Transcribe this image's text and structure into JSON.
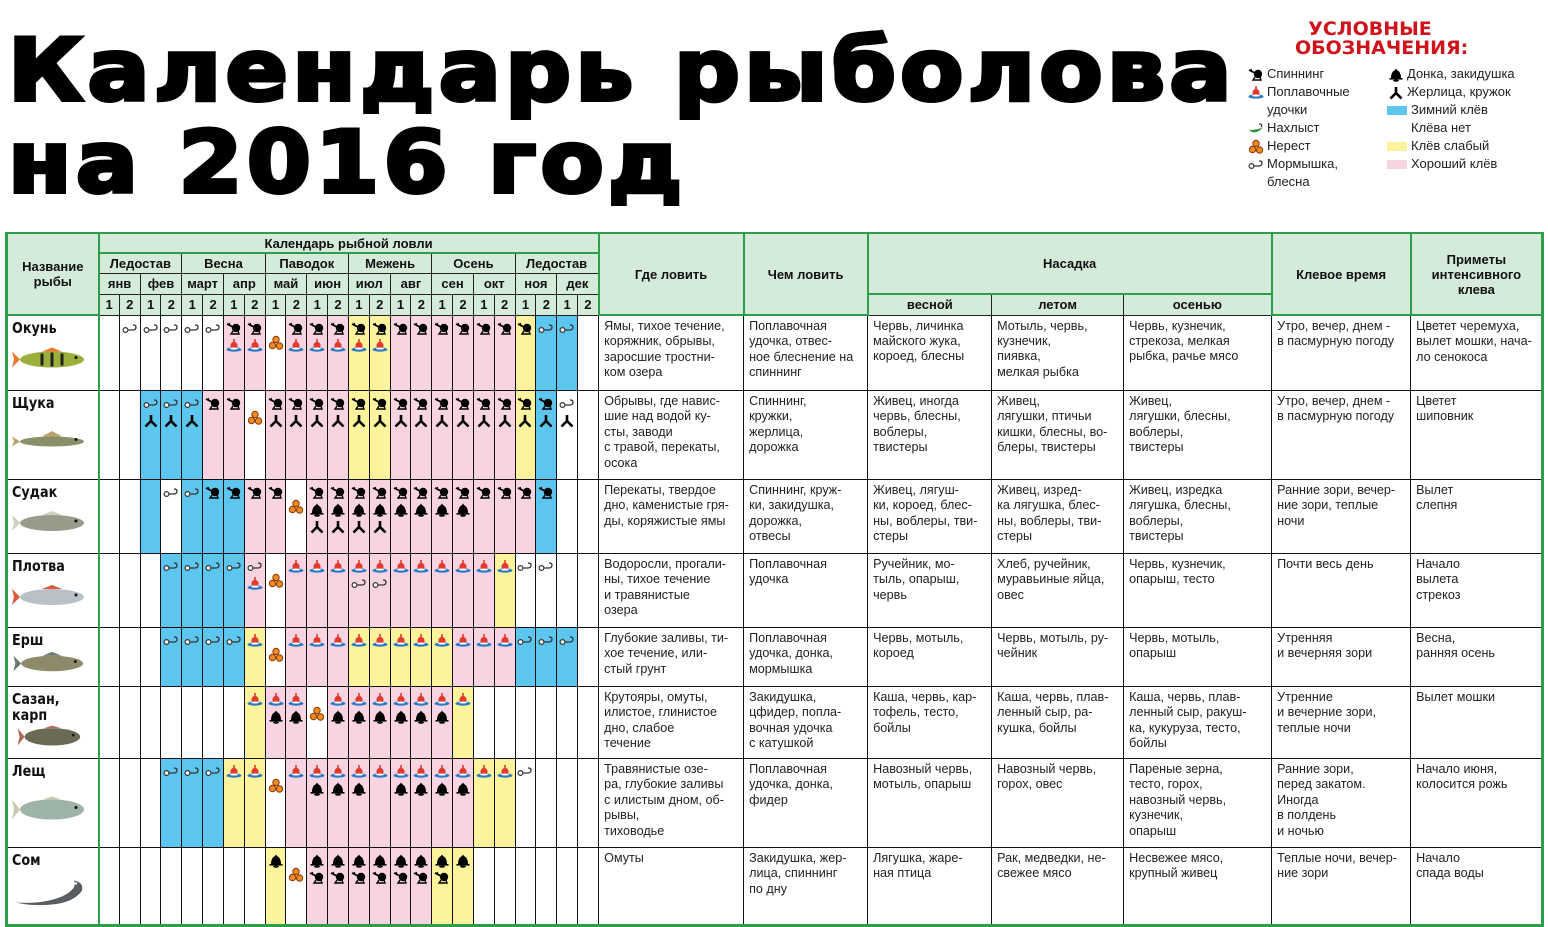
{
  "title": {
    "line1": "Календарь рыболова",
    "line2": "на 2016 год"
  },
  "legend": {
    "title": "УСЛОВНЫЕ\nОБОЗНАЧЕНИЯ:",
    "gear": [
      {
        "code": "S",
        "icon": "spinning-icon",
        "label": "Спиннинг"
      },
      {
        "code": "F",
        "icon": "float-rod-icon",
        "label": "Поплавочные\nудочки"
      },
      {
        "code": "H",
        "icon": "fly-fishing-icon",
        "label": "Нахлыст"
      },
      {
        "code": "N",
        "icon": "spawning-icon",
        "label": "Нерест"
      },
      {
        "code": "M",
        "icon": "jig-spoon-icon",
        "label": "Мормышка,\nблесна"
      },
      {
        "code": "D",
        "icon": "bottom-rod-icon",
        "label": "Донка, закидушка"
      },
      {
        "code": "Z",
        "icon": "zherlitsa-icon",
        "label": "Жерлица, кружок"
      }
    ],
    "bite": [
      {
        "code": "B",
        "label": "Зимний клёв",
        "color": "#5dc6ee"
      },
      {
        "code": "W",
        "label": "Клёва нет",
        "color": "#ffffff"
      },
      {
        "code": "Y",
        "label": "Клёв слабый",
        "color": "#fbf49c"
      },
      {
        "code": "P",
        "label": "Хороший клёв",
        "color": "#f8d3e1"
      }
    ]
  },
  "header": {
    "fish_name": "Название рыбы",
    "calendar": "Календарь рыбной ловли",
    "seasons": [
      "Ледостав",
      "Весна",
      "Паводок",
      "Межень",
      "Осень",
      "Ледостав"
    ],
    "months": [
      "янв",
      "фев",
      "март",
      "апр",
      "май",
      "июн",
      "июл",
      "авг",
      "сен",
      "окт",
      "ноя",
      "дек"
    ],
    "halves": [
      "1",
      "2"
    ],
    "where": "Где ловить",
    "with_what": "Чем ловить",
    "bait": "Насадка",
    "bait_seasons": [
      "весной",
      "летом",
      "осенью"
    ],
    "bite_time": "Клевое время",
    "signs": "Приметы интенсивного клева"
  },
  "accent_colors": {
    "header_bg": "#d4ebd9",
    "border_green": "#2f9e4b",
    "legend_title": "#d0121b"
  },
  "fish": [
    {
      "name": "Окунь",
      "bite": "WWWWWWPPWPPPYYPPPPPPYBBW",
      "gear": [
        "",
        "M",
        "M",
        "M",
        "M",
        "M",
        "SF",
        "SF",
        "N",
        "SF",
        "SF",
        "SF",
        "SF",
        "SF",
        "S",
        "S",
        "S",
        "S",
        "S",
        "S",
        "S",
        "M",
        "M",
        ""
      ],
      "where": "Ямы, тихое течение,\nкоряжник, обрывы,\nзаросшие тростни-\nком озера",
      "with_what": "Поплавочная\nудочка, отвес-\nное блеснение на\nспиннинг",
      "spring": "Червь, личинка\nмайского жука,\nкороед, блесны",
      "summer": "Мотыль, червь,\nкузнечик,\nпиявка,\nмелкая рыбка",
      "autumn": "Червь, кузнечик,\nстрекоза, мелкая\nрыбка, рачье мясо",
      "bite_time": "Утро, вечер, днем -\nв пасмурную погоду",
      "signs": "Цветет черемуха,\nвылет мошки, нача-\nло сенокоса"
    },
    {
      "name": "Щука",
      "bite": "WWBBBPPWPPPPYYPPPPPPYBWW",
      "gear": [
        "",
        "",
        "MZ",
        "MZ",
        "MZ",
        "S",
        "S",
        "N",
        "SZ",
        "SZ",
        "SZ",
        "SZ",
        "SZ",
        "SZ",
        "SZ",
        "SZ",
        "SZ",
        "SZ",
        "SZ",
        "SZ",
        "SZ",
        "SZ",
        "MZ",
        ""
      ],
      "where": "Обрывы, где навис-\nшие над водой ку-\nсты, заводи\nс травой, перекаты,\nосока",
      "with_what": "Спиннинг,\nкружки,\nжерлица,\nдорожка",
      "spring": "Живец, иногда\nчервь, блесны,\nвоблеры,\nтвистеры",
      "summer": "Живец,\nлягушки, птичьи\nкишки, блесны, во-\nблеры, твистеры",
      "autumn": "Живец,\nлягушки, блесны,\nвоблеры,\nтвистеры",
      "bite_time": "Утро, вечер, днем -\nв пасмурную погоду",
      "signs": "Цветет\nшиповник"
    },
    {
      "name": "Судак",
      "bite": "WWBWBBBPPWPPPPPPPPPPPBWW",
      "gear": [
        "",
        "",
        "",
        "M",
        "M",
        "S",
        "S",
        "S",
        "S",
        "N",
        "SDZ",
        "SDZ",
        "SDZ",
        "SDZ",
        "SD",
        "SD",
        "SD",
        "SD",
        "S",
        "S",
        "S",
        "S",
        "",
        ""
      ],
      "where": "Перекаты, твердое\nдно, каменистые гря-\nды, коряжистые ямы",
      "with_what": "Спиннинг, круж-\nки, закидушка,\nдорожка,\nотвесы",
      "spring": "Живец, лягуш-\nки, короед, блес-\nны, воблеры, тви-\nстеры",
      "summer": "Живец, изред-\nка лягушка, блес-\nны, воблеры, тви-\nстеры",
      "autumn": "Живец, изредка\nлягушка, блесны,\nвоблеры,\nтвистеры",
      "bite_time": "Ранние зори, вечер-\nние зори, теплые\nночи",
      "signs": "Вылет\nслепня"
    },
    {
      "name": "Плотва",
      "bite": "WWWBBBBPWPPPPPPPPPPYWWWW",
      "gear": [
        "",
        "",
        "",
        "M",
        "M",
        "M",
        "M",
        "MF",
        "N",
        "F",
        "F",
        "F",
        "FM",
        "FM",
        "F",
        "F",
        "F",
        "F",
        "F",
        "F",
        "M",
        "M",
        "",
        ""
      ],
      "where": "Водоросли,  прогали-\nны, тихое течение\nи травянистые\nозера",
      "with_what": "Поплавочная\nудочка",
      "spring": "Ручейник, мо-\nтыль, опарыш,\nчервь",
      "summer": "Хлеб, ручейник,\nмуравьиные яйца,\nовес",
      "autumn": "Червь, кузнечик,\nопарыш, тесто",
      "bite_time": "Почти весь день",
      "signs": "Начало\nвылета\nстрекоз"
    },
    {
      "name": "Ерш",
      "bite": "WWWBBBBYWPPPYYYYYPPPBBBW",
      "gear": [
        "",
        "",
        "",
        "M",
        "M",
        "M",
        "M",
        "F",
        "N",
        "F",
        "F",
        "F",
        "F",
        "F",
        "F",
        "F",
        "F",
        "F",
        "F",
        "F",
        "M",
        "M",
        "M",
        ""
      ],
      "where": "Глубокие заливы, ти-\nхое течение, или-\nстый грунт",
      "with_what": "Поплавочная\nудочка, донка,\nмормышка",
      "spring": "Червь, мотыль,\nкороед",
      "summer": "Червь, мотыль, ру-\nчейник",
      "autumn": "Червь, мотыль,\nопарыш",
      "bite_time": "Утренняя\nи вечерняя зори",
      "signs": "Весна,\nранняя осень"
    },
    {
      "name": "Сазан,\nкарп",
      "bite": "WWWWWWWYPPWPPPPPPYWWWWWW",
      "gear": [
        "",
        "",
        "",
        "",
        "",
        "",
        "",
        "F",
        "FD",
        "FD",
        "N",
        "FD",
        "FD",
        "FD",
        "FD",
        "FD",
        "FD",
        "F",
        "",
        "",
        "",
        "",
        "",
        ""
      ],
      "where": "Крутояры, омуты,\nилистое, глинистое\nдно, слабое\nтечение",
      "with_what": "Закидушка,\nцфидер, попла-\nвочная удочка\nс катушкой",
      "spring": "Каша, червь, кар-\nтофель, тесто,\nбойлы",
      "summer": "Каша, червь, плав-\nленный сыр, ра-\nкушка, бойлы",
      "autumn": "Каша, червь, плав-\nленный сыр, ракуш-\nка, кукуруза, тесто,\nбойлы",
      "bite_time": "Утренние\nи вечерние зори,\nтеплые ночи",
      "signs": "Вылет мошки"
    },
    {
      "name": "Лещ",
      "bite": "WWWBBBYYWPPPPPPPPPYYWWWW",
      "gear": [
        "",
        "",
        "",
        "M",
        "M",
        "M",
        "F",
        "F",
        "N",
        "F",
        "FD",
        "FD",
        "FD",
        "F",
        "FD",
        "FD",
        "FD",
        "FD",
        "F",
        "F",
        "M",
        "",
        "",
        ""
      ],
      "where": "Травянистые озе-\nра, глубокие заливы\nс илистым дном, об-\nрывы,\nтиховодье",
      "with_what": "Поплавочная\nудочка, донка,\nфидер",
      "spring": "Навозный червь,\nмотыль, опарыш",
      "summer": "Навозный червь,\nгорох, овес",
      "autumn": "Пареные зерна,\nтесто, горох,\nнавозный червь,\nкузнечик,\nопарыш",
      "bite_time": "Ранние зори,\nперед закатом.\nИногда\nв полдень\nи ночью",
      "signs": "Начало июня,\nколосится рожь"
    },
    {
      "name": "Сом",
      "bite": "WWWWWWWWYWPPPPPPYYWWWWWW",
      "gear": [
        "",
        "",
        "",
        "",
        "",
        "",
        "",
        "",
        "D",
        "N",
        "DS",
        "DS",
        "DS",
        "DS",
        "DS",
        "DS",
        "DS",
        "D",
        "",
        "",
        "",
        "",
        "",
        ""
      ],
      "where": "Омуты",
      "with_what": "Закидушка, жер-\nлица, спиннинг\nпо дну",
      "spring": "Лягушка, жаре-\nная птица",
      "summer": "Рак, медведки, не-\nсвежее мясо",
      "autumn": "Несвежее мясо,\nкрупный живец",
      "bite_time": "Теплые ночи, вечер-\nние зори",
      "signs": "Начало\nспада воды"
    }
  ]
}
